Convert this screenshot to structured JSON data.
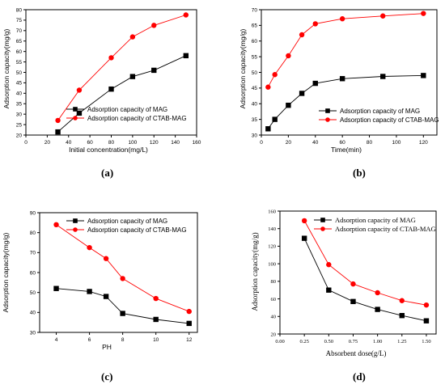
{
  "chart_data": [
    {
      "type": "line",
      "panel_label": "(a)",
      "title": "",
      "xlabel": "Initial concentration(mg/L)",
      "ylabel": "Adsorption capacity(mg/g)",
      "xlim": [
        0,
        160
      ],
      "ylim": [
        20,
        80
      ],
      "xticks": [
        "0",
        "20",
        "40",
        "60",
        "80",
        "100",
        "120",
        "140",
        "160"
      ],
      "yticks": [
        "20",
        "25",
        "30",
        "35",
        "40",
        "45",
        "50",
        "55",
        "60",
        "65",
        "70",
        "75",
        "80"
      ],
      "legend_position": "bottom-right",
      "series": [
        {
          "name": "Adsorption capacity of MAG",
          "color": "#000000",
          "marker": "square",
          "x": [
            30,
            50,
            80,
            100,
            120,
            150
          ],
          "y": [
            21.5,
            30.5,
            42,
            48,
            51,
            58
          ]
        },
        {
          "name": "Adsorption capacity of CTAB-MAG",
          "color": "#ff0000",
          "marker": "circle",
          "x": [
            30,
            50,
            80,
            100,
            120,
            150
          ],
          "y": [
            27,
            41.5,
            57,
            67,
            72.5,
            77.5
          ]
        }
      ]
    },
    {
      "type": "line",
      "panel_label": "(b)",
      "title": "",
      "xlabel": "Time(min)",
      "ylabel": "Adsorption capacity(mg/g)",
      "xlim": [
        0,
        130
      ],
      "ylim": [
        30,
        70
      ],
      "xticks": [
        "0",
        "20",
        "40",
        "60",
        "80",
        "100",
        "120"
      ],
      "yticks": [
        "30",
        "35",
        "40",
        "45",
        "50",
        "55",
        "60",
        "65",
        "70"
      ],
      "legend_position": "bottom-right",
      "series": [
        {
          "name": "Adsorption capacity of MAG",
          "color": "#000000",
          "marker": "square",
          "x": [
            5,
            10,
            20,
            30,
            40,
            60,
            90,
            120
          ],
          "y": [
            32,
            35,
            39.5,
            43.3,
            46.5,
            48,
            48.7,
            49
          ]
        },
        {
          "name": "Adsorption capacity of CTAB-MAG",
          "color": "#ff0000",
          "marker": "circle",
          "x": [
            5,
            10,
            20,
            30,
            40,
            60,
            90,
            120
          ],
          "y": [
            45.3,
            49.3,
            55.3,
            62,
            65.5,
            67.1,
            68,
            68.8
          ]
        }
      ]
    },
    {
      "type": "line",
      "panel_label": "(c)",
      "title": "",
      "xlabel": "PH",
      "ylabel": "Adsorption capacity(mg/g)",
      "xlim": [
        3,
        12.5
      ],
      "ylim": [
        30,
        90
      ],
      "xticks": [
        "4",
        "6",
        "8",
        "10",
        "12"
      ],
      "yticks": [
        "30",
        "40",
        "50",
        "60",
        "70",
        "80",
        "90"
      ],
      "legend_position": "top-right",
      "series": [
        {
          "name": "Adsorption capacity of MAG",
          "color": "#000000",
          "marker": "square",
          "x": [
            4,
            6,
            7,
            8,
            10,
            12
          ],
          "y": [
            52,
            50.5,
            48,
            39.5,
            36.5,
            34.5
          ]
        },
        {
          "name": "Adsorption capacity of CTAB-MAG",
          "color": "#ff0000",
          "marker": "circle",
          "x": [
            4,
            6,
            7,
            8,
            10,
            12
          ],
          "y": [
            84,
            72.5,
            67,
            57,
            47,
            40.5
          ]
        }
      ]
    },
    {
      "type": "line",
      "panel_label": "(d)",
      "title": "",
      "xlabel": "Absorbent dose(g/L)",
      "ylabel": "Adsorption capacity(mg/g)",
      "xlim": [
        0,
        1.6
      ],
      "ylim": [
        20,
        160
      ],
      "xticks": [
        "0.00",
        "0.25",
        "0.50",
        "0.75",
        "1.00",
        "1.25",
        "1.50"
      ],
      "yticks": [
        "20",
        "40",
        "60",
        "80",
        "100",
        "120",
        "140",
        "160"
      ],
      "legend_position": "top-right",
      "series": [
        {
          "name": "Adsorption capacity of MAG",
          "color": "#000000",
          "marker": "square",
          "x": [
            0.25,
            0.5,
            0.75,
            1.0,
            1.25,
            1.5
          ],
          "y": [
            129,
            70,
            57,
            48,
            41,
            35
          ]
        },
        {
          "name": "Adsorption capacity of CTAB-MAG",
          "color": "#ff0000",
          "marker": "circle",
          "x": [
            0.25,
            0.5,
            0.75,
            1.0,
            1.25,
            1.5
          ],
          "y": [
            149,
            99,
            77,
            67,
            58,
            53
          ]
        }
      ]
    }
  ]
}
